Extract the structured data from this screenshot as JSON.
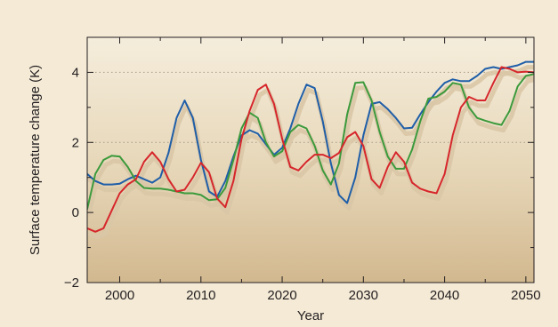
{
  "chart_data": {
    "type": "line",
    "xlabel": "Year",
    "ylabel": "Surface temperature change (K)",
    "xlim": [
      1996,
      2051
    ],
    "ylim": [
      -2,
      5
    ],
    "x_ticks": [
      2000,
      2010,
      2020,
      2030,
      2040,
      2050
    ],
    "x_tick_labels": [
      "2000",
      "2010",
      "2020",
      "2030",
      "2040",
      "2050"
    ],
    "y_ticks": [
      -2,
      0,
      2,
      4
    ],
    "y_tick_labels": [
      "−2",
      "0",
      "2",
      "4"
    ],
    "gridlines_y": [
      2,
      4
    ],
    "grid": "dotted horizontal at 2 and 4",
    "legend": "none",
    "plot_background": "vertical gradient from #f4ecdb (top) to #d2b88f (bottom)",
    "page_background": "#f4ead6",
    "shadow_color": "#d9c7a6",
    "series": [
      {
        "color": "#1f5ea8",
        "x": [
          1996,
          1997,
          1998,
          1999,
          2000,
          2001,
          2002,
          2003,
          2004,
          2005,
          2006,
          2007,
          2008,
          2009,
          2010,
          2011,
          2012,
          2013,
          2014,
          2015,
          2016,
          2017,
          2018,
          2019,
          2020,
          2021,
          2022,
          2023,
          2024,
          2025,
          2026,
          2027,
          2028,
          2029,
          2030,
          2031,
          2032,
          2033,
          2034,
          2035,
          2036,
          2037,
          2038,
          2039,
          2040,
          2041,
          2042,
          2043,
          2044,
          2045,
          2046,
          2047,
          2048,
          2049,
          2050,
          2051
        ],
        "y": [
          1.1,
          0.9,
          0.8,
          0.8,
          0.82,
          0.95,
          1.05,
          0.95,
          0.85,
          1.0,
          1.7,
          2.7,
          3.2,
          2.7,
          1.5,
          0.6,
          0.45,
          0.9,
          1.6,
          2.2,
          2.35,
          2.25,
          1.95,
          1.65,
          1.85,
          2.4,
          3.1,
          3.65,
          3.55,
          2.6,
          1.4,
          0.5,
          0.27,
          1.0,
          2.2,
          3.1,
          3.15,
          2.95,
          2.7,
          2.4,
          2.42,
          2.8,
          3.15,
          3.45,
          3.7,
          3.8,
          3.75,
          3.75,
          3.9,
          4.1,
          4.15,
          4.1,
          4.15,
          4.2,
          4.3,
          4.3
        ]
      },
      {
        "color": "#3c9a3c",
        "x": [
          1996,
          1997,
          1998,
          1999,
          2000,
          2001,
          2002,
          2003,
          2004,
          2005,
          2006,
          2007,
          2008,
          2009,
          2010,
          2011,
          2012,
          2013,
          2014,
          2015,
          2016,
          2017,
          2018,
          2019,
          2020,
          2021,
          2022,
          2023,
          2024,
          2025,
          2026,
          2027,
          2028,
          2029,
          2030,
          2031,
          2032,
          2033,
          2034,
          2035,
          2036,
          2037,
          2038,
          2039,
          2040,
          2041,
          2042,
          2043,
          2044,
          2045,
          2046,
          2047,
          2048,
          2049,
          2050,
          2051
        ],
        "y": [
          0.1,
          1.1,
          1.5,
          1.62,
          1.6,
          1.3,
          0.9,
          0.7,
          0.68,
          0.68,
          0.65,
          0.6,
          0.55,
          0.55,
          0.5,
          0.35,
          0.38,
          0.7,
          1.5,
          2.4,
          2.85,
          2.7,
          2.0,
          1.6,
          1.75,
          2.3,
          2.5,
          2.4,
          1.9,
          1.2,
          0.8,
          1.4,
          2.8,
          3.7,
          3.72,
          3.2,
          2.3,
          1.6,
          1.25,
          1.25,
          1.8,
          2.6,
          3.25,
          3.3,
          3.45,
          3.7,
          3.65,
          3.0,
          2.7,
          2.62,
          2.55,
          2.5,
          2.9,
          3.6,
          3.9,
          3.95
        ]
      },
      {
        "color": "#d6262b",
        "x": [
          1996,
          1997,
          1998,
          1999,
          2000,
          2001,
          2002,
          2003,
          2004,
          2005,
          2006,
          2007,
          2008,
          2009,
          2010,
          2011,
          2012,
          2013,
          2014,
          2015,
          2016,
          2017,
          2018,
          2019,
          2020,
          2021,
          2022,
          2023,
          2024,
          2025,
          2026,
          2027,
          2028,
          2029,
          2030,
          2031,
          2032,
          2033,
          2034,
          2035,
          2036,
          2037,
          2038,
          2039,
          2040,
          2041,
          2042,
          2043,
          2044,
          2045,
          2046,
          2047,
          2048,
          2049,
          2050,
          2051
        ],
        "y": [
          -0.45,
          -0.55,
          -0.45,
          0.05,
          0.55,
          0.8,
          0.95,
          1.45,
          1.72,
          1.45,
          0.95,
          0.6,
          0.65,
          1.0,
          1.42,
          1.15,
          0.4,
          0.15,
          0.9,
          2.1,
          2.9,
          3.5,
          3.65,
          3.1,
          2.1,
          1.3,
          1.2,
          1.45,
          1.65,
          1.65,
          1.55,
          1.7,
          2.15,
          2.3,
          1.9,
          0.95,
          0.7,
          1.3,
          1.72,
          1.45,
          0.85,
          0.68,
          0.6,
          0.55,
          1.1,
          2.2,
          3.0,
          3.3,
          3.2,
          3.2,
          3.7,
          4.15,
          4.1,
          4.0,
          4.02,
          4.0
        ]
      }
    ]
  }
}
